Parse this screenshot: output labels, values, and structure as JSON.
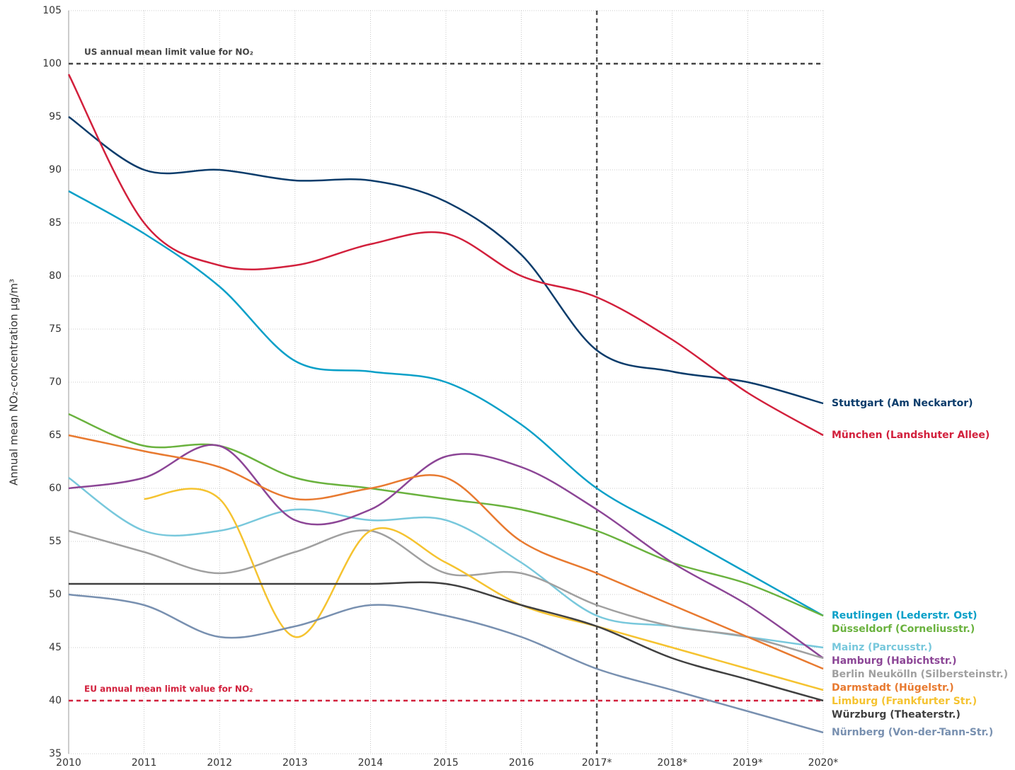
{
  "chart_data": {
    "type": "line",
    "y_axis_label": "Annual mean NO₂-concentration µg/m³",
    "categories": [
      "2010",
      "2011",
      "2012",
      "2013",
      "2014",
      "2015",
      "2016",
      "2017*",
      "2018*",
      "2019*",
      "2020*"
    ],
    "series": [
      {
        "name": "Stuttgart (Am Neckartor)",
        "color": "#0b3c6b",
        "values": [
          95,
          90,
          90,
          89,
          89,
          87,
          82,
          73,
          71,
          70,
          68
        ]
      },
      {
        "name": "München (Landshuter Allee)",
        "color": "#d2203c",
        "values": [
          99,
          85,
          81,
          81,
          83,
          84,
          80,
          78,
          74,
          69,
          65
        ]
      },
      {
        "name": "Reutlingen (Lederstr. Ost)",
        "color": "#0aa0c8",
        "values": [
          88,
          84,
          79,
          72,
          71,
          70,
          66,
          60,
          56,
          52,
          48
        ]
      },
      {
        "name": "Düsseldorf (Corneliusstr.)",
        "color": "#6ab23e",
        "values": [
          67,
          64,
          64,
          61,
          60,
          59,
          58,
          56,
          53,
          51,
          48
        ]
      },
      {
        "name": "Mainz (Parcusstr.)",
        "color": "#78c8dc",
        "values": [
          61,
          56,
          56,
          58,
          57,
          57,
          53,
          48,
          47,
          46,
          45
        ]
      },
      {
        "name": "Hamburg (Habichtstr.)",
        "color": "#8c4696",
        "values": [
          60,
          61,
          64,
          57,
          58,
          63,
          62,
          58,
          53,
          49,
          44
        ]
      },
      {
        "name": "Berlin Neukölln (Silbersteinstr.)",
        "color": "#a0a0a0",
        "values": [
          56,
          54,
          52,
          54,
          56,
          52,
          52,
          49,
          47,
          46,
          44
        ]
      },
      {
        "name": "Darmstadt (Hügelstr.)",
        "color": "#e87a30",
        "values": [
          65,
          63.5,
          62,
          59,
          60,
          61,
          55,
          52,
          49,
          46,
          43
        ]
      },
      {
        "name": "Limburg (Frankfurter Str.)",
        "color": "#f5c330",
        "values": [
          null,
          59,
          59,
          46,
          56,
          53,
          49,
          47,
          45,
          43,
          41
        ]
      },
      {
        "name": "Würzburg (Theaterstr.)",
        "color": "#404040",
        "values": [
          51,
          51,
          51,
          51,
          51,
          51,
          49,
          47,
          44,
          42,
          40
        ]
      },
      {
        "name": "Nürnberg (Von-der-Tann-Str.)",
        "color": "#7890b0",
        "values": [
          50,
          49,
          46,
          47,
          49,
          48,
          46,
          43,
          41,
          39,
          37
        ]
      }
    ],
    "reference_lines": [
      {
        "label": "US annual mean limit value for NO₂",
        "value": 100,
        "color": "#444444"
      },
      {
        "label": "EU annual mean limit value for NO₂",
        "value": 40,
        "color": "#d2203c"
      }
    ],
    "ylim": [
      35,
      105
    ],
    "yticks": [
      35,
      40,
      45,
      50,
      55,
      60,
      65,
      70,
      75,
      80,
      85,
      90,
      95,
      100,
      105
    ],
    "grid": true
  }
}
